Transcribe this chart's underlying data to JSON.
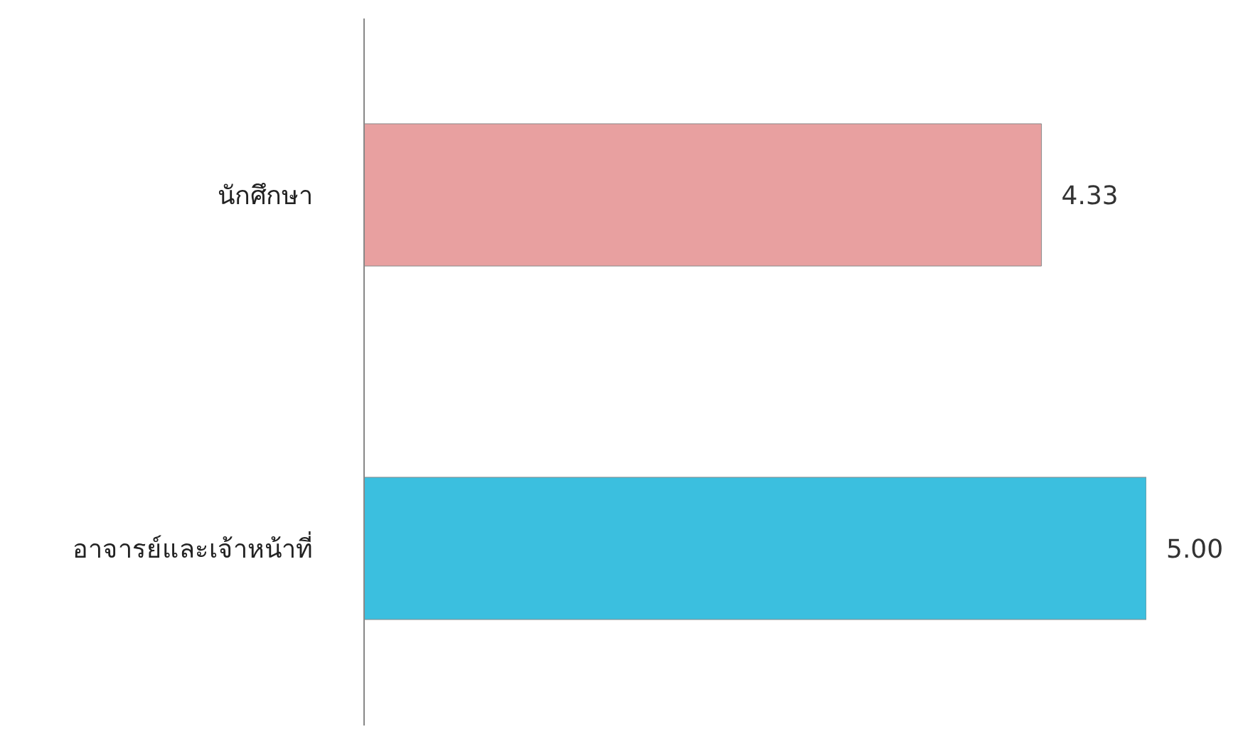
{
  "chart_data": {
    "type": "bar",
    "orientation": "horizontal",
    "categories": [
      "นักศึกษา",
      "อาจารย์และเจ้าหน้าที่"
    ],
    "values": [
      4.33,
      5.0
    ],
    "colors": [
      "#e8a0a0",
      "#3bbfdf"
    ],
    "value_labels": [
      "4.33",
      "5.00"
    ],
    "grid": false,
    "legend": false
  }
}
